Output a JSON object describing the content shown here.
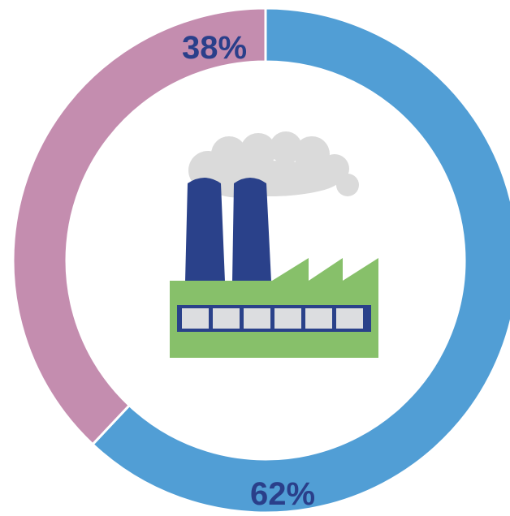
{
  "chart_data": {
    "type": "pie",
    "donut": true,
    "categories": [
      "",
      ""
    ],
    "values": [
      62,
      38
    ],
    "data_labels": [
      "62%",
      "38%"
    ],
    "colors": [
      "#519ed5",
      "#c48daf"
    ],
    "label_color": "#2a3f8a",
    "title": "",
    "center_icon": "factory-icon"
  },
  "icon_colors": {
    "chimney": "#2a418a",
    "building": "#87c06a",
    "windows": "#dcdde0",
    "window_frame": "#2a418a",
    "smoke": "#dadada"
  }
}
